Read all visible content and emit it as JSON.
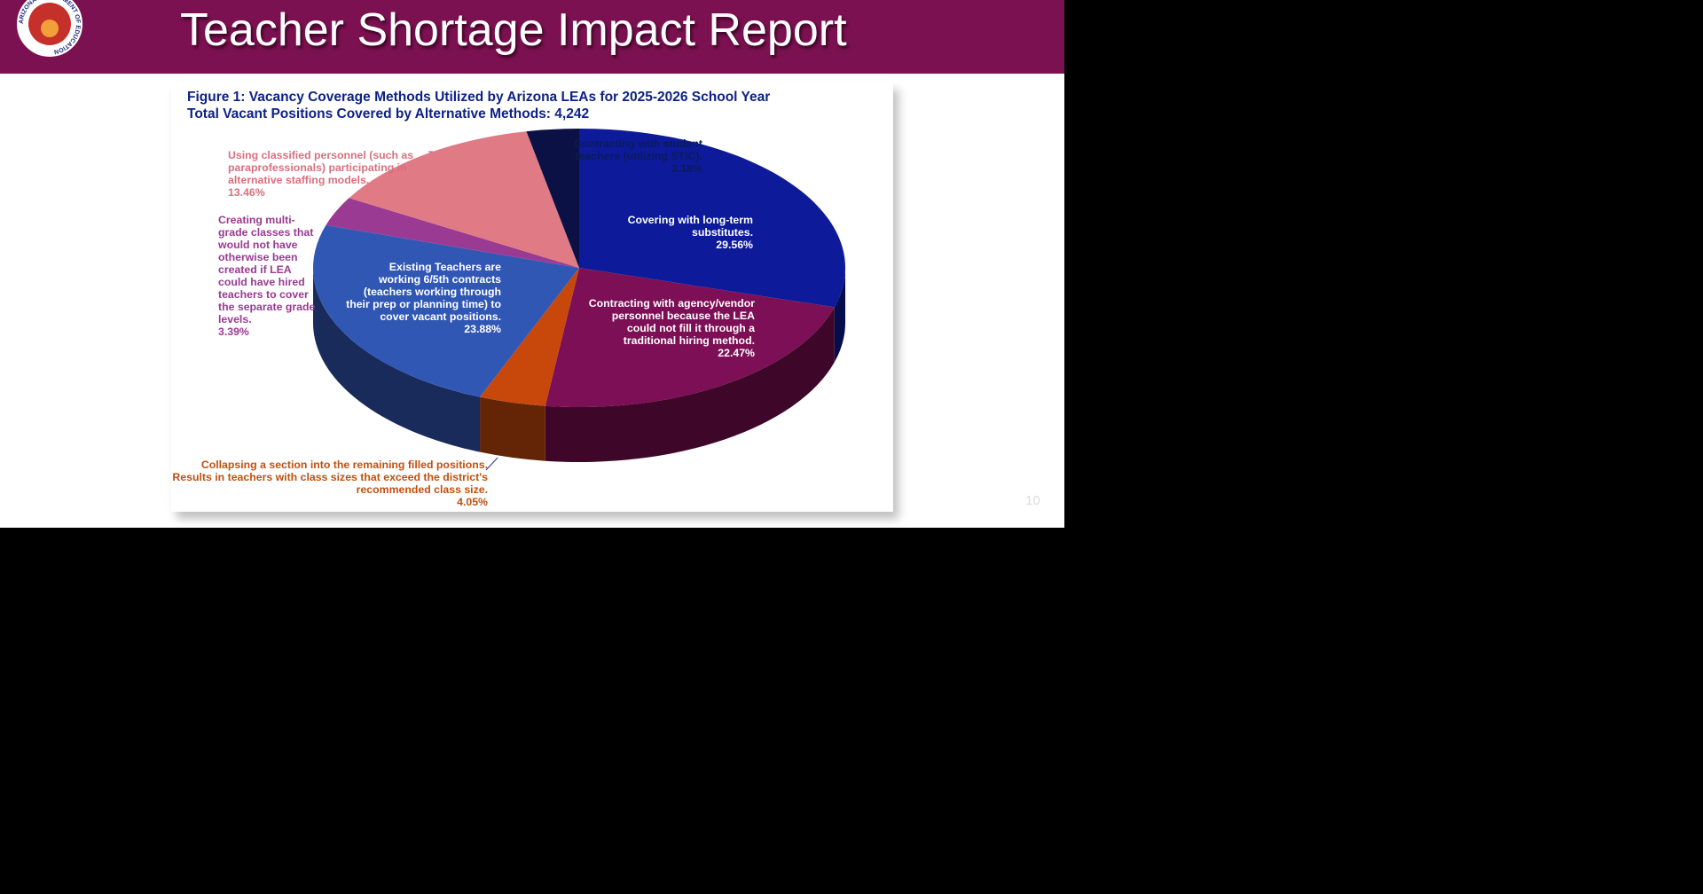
{
  "header": {
    "title": "Teacher Shortage Impact Report",
    "logo_text": "ARIZONA DEPARTMENT OF EDUCATION",
    "page_number": "10"
  },
  "chart_data": {
    "type": "pie",
    "title": "Figure 1: Vacancy Coverage Methods Utilized by Arizona LEAs for 2025-2026 School Year",
    "subtitle": "Total Vacant Positions Covered by Alternative Methods: 4,242",
    "categories": [
      "Covering with long-term substitutes.",
      "Contracting with agency/vendor personnel because the LEA could not fill it through a traditional hiring method.",
      "Collapsing a section into the remaining filled positions. Results in teachers with class sizes that exceed the district's recommended class size.",
      "Existing Teachers are working 6/5th contracts (teachers working through their prep or planning time) to cover vacant positions.",
      "Creating multi-grade classes that would not have otherwise been created if LEA could have hired teachers to cover the separate grade levels.",
      "Using classified personnel (such as paraprofessionals) participating in alternative staffing models.",
      "Contracting with student teachers (utilizing STIC)."
    ],
    "values": [
      29.56,
      22.47,
      4.05,
      23.88,
      3.39,
      13.46,
      3.18
    ],
    "value_labels": [
      "29.56%",
      "22.47%",
      "4.05%",
      "23.88%",
      "3.39%",
      "13.46%",
      "3.18%"
    ],
    "colors": [
      "#0d1a9a",
      "#7c0f55",
      "#c8480c",
      "#3157b5",
      "#9a3a92",
      "#e07b86",
      "#0b1145"
    ]
  }
}
